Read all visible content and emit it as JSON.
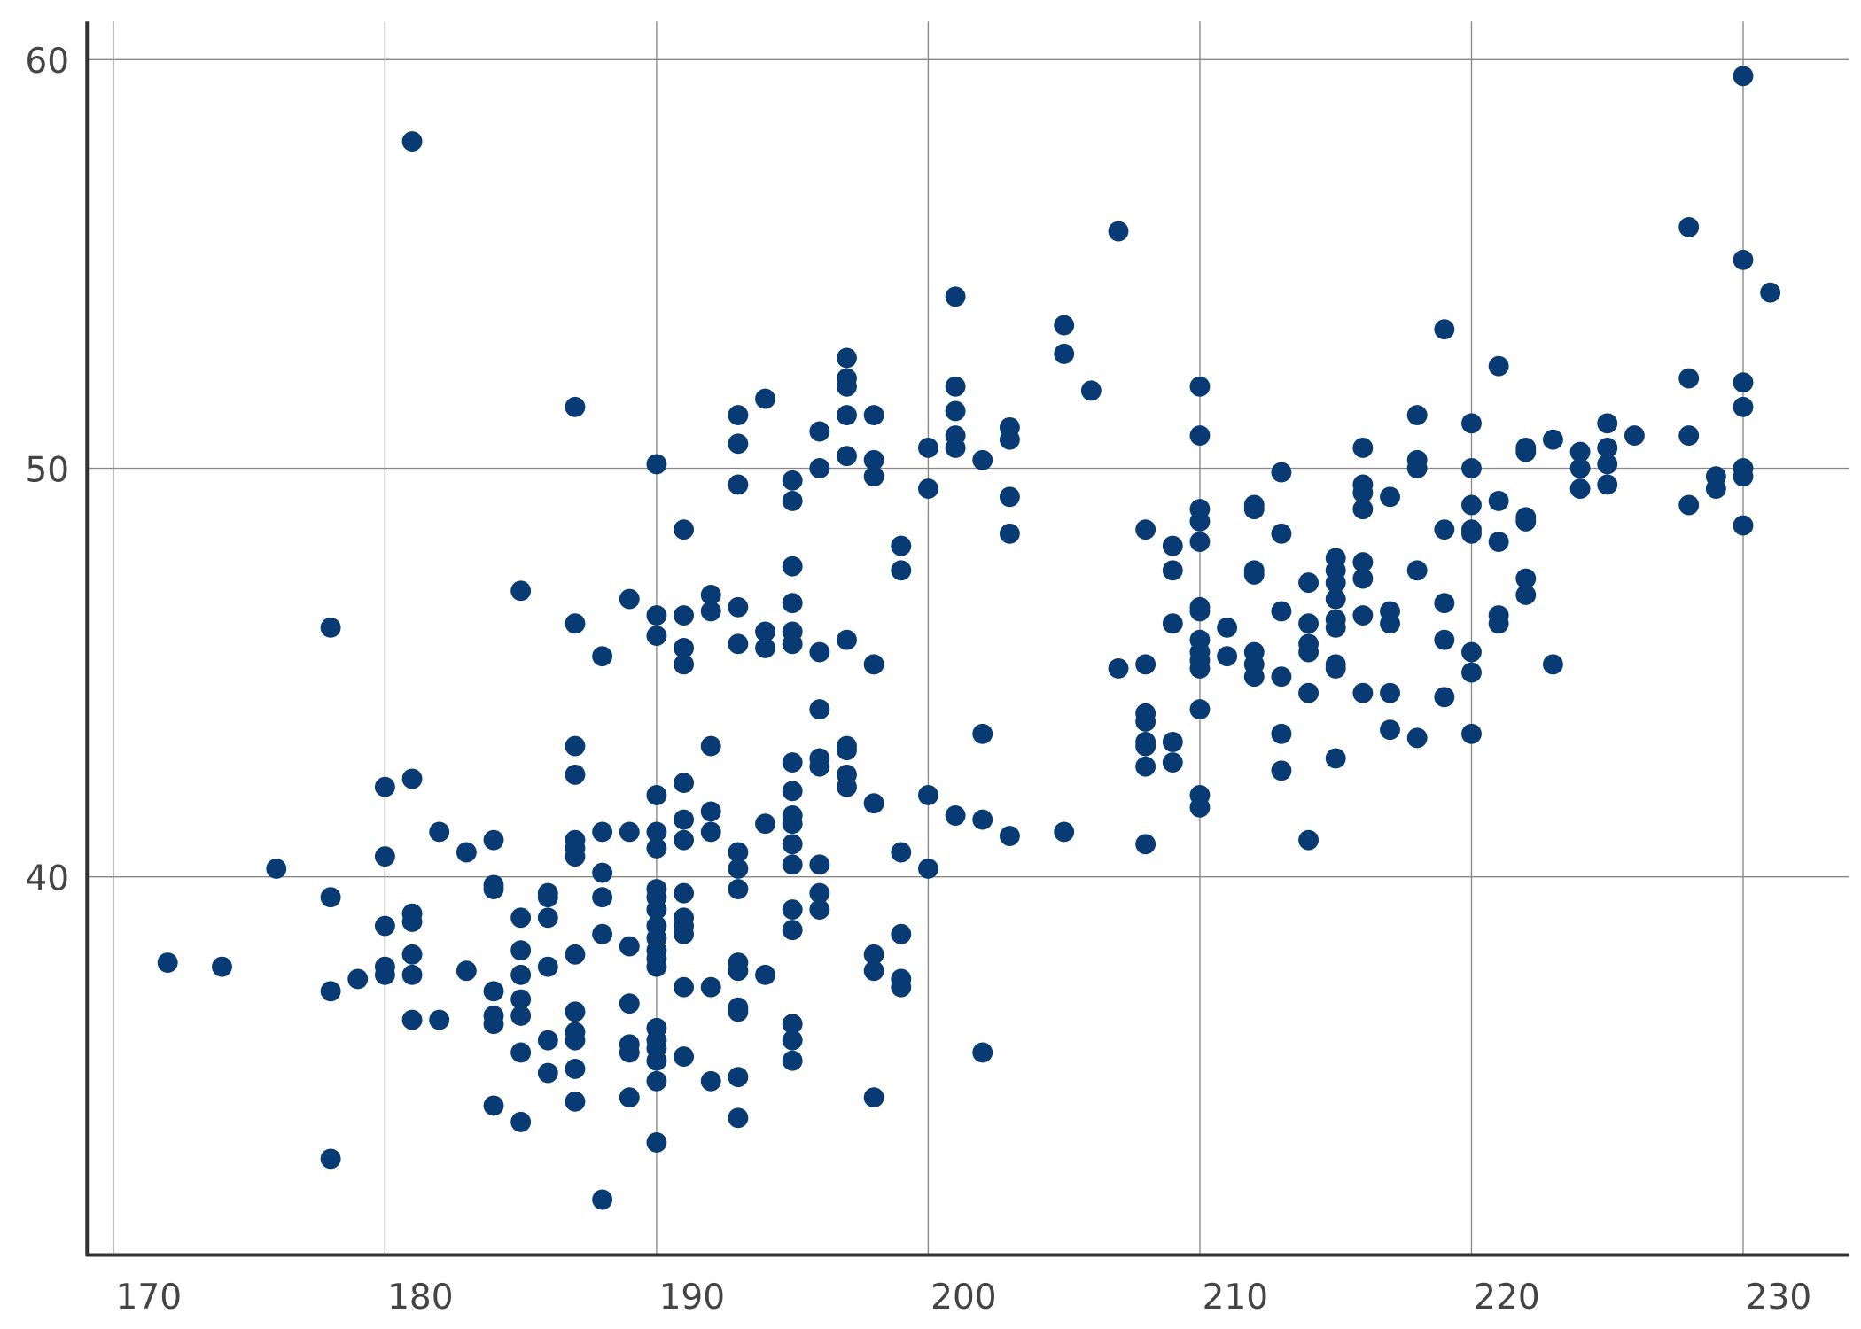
{
  "chart_data": {
    "type": "scatter",
    "title": "",
    "xlabel": "",
    "ylabel": "",
    "xlim": [
      169,
      233
    ],
    "ylim": [
      31,
      61
    ],
    "x_ticks": [
      "170",
      "180",
      "190",
      "200",
      "210",
      "220",
      "230"
    ],
    "y_ticks": [
      "40",
      "50",
      "60"
    ],
    "grid": true,
    "legend": "none",
    "point_color": "#083b74",
    "points": [
      [
        172,
        37.9
      ],
      [
        174,
        37.8
      ],
      [
        176,
        40.2
      ],
      [
        178,
        46.1
      ],
      [
        178,
        39.5
      ],
      [
        178,
        37.2
      ],
      [
        178,
        33.1
      ],
      [
        179,
        37.5
      ],
      [
        180,
        42.2
      ],
      [
        180,
        40.5
      ],
      [
        180,
        38.8
      ],
      [
        180,
        37.8
      ],
      [
        180,
        37.6
      ],
      [
        181,
        58.0
      ],
      [
        181,
        42.4
      ],
      [
        181,
        39.1
      ],
      [
        181,
        38.9
      ],
      [
        181,
        38.1
      ],
      [
        181,
        37.6
      ],
      [
        181,
        36.5
      ],
      [
        182,
        41.1
      ],
      [
        182,
        36.5
      ],
      [
        183,
        40.6
      ],
      [
        183,
        37.7
      ],
      [
        184,
        40.9
      ],
      [
        184,
        39.8
      ],
      [
        184,
        39.7
      ],
      [
        184,
        37.2
      ],
      [
        184,
        36.6
      ],
      [
        184,
        36.4
      ],
      [
        184,
        34.4
      ],
      [
        185,
        47.0
      ],
      [
        185,
        39.0
      ],
      [
        185,
        38.2
      ],
      [
        185,
        37.6
      ],
      [
        185,
        37.0
      ],
      [
        185,
        36.6
      ],
      [
        185,
        35.7
      ],
      [
        185,
        34.0
      ],
      [
        186,
        39.6
      ],
      [
        186,
        39.5
      ],
      [
        186,
        39.0
      ],
      [
        186,
        37.8
      ],
      [
        186,
        36.0
      ],
      [
        186,
        35.2
      ],
      [
        187,
        51.5
      ],
      [
        187,
        46.2
      ],
      [
        187,
        43.2
      ],
      [
        187,
        42.5
      ],
      [
        187,
        40.9
      ],
      [
        187,
        40.7
      ],
      [
        187,
        40.5
      ],
      [
        187,
        38.1
      ],
      [
        187,
        36.7
      ],
      [
        187,
        36.2
      ],
      [
        187,
        36.0
      ],
      [
        187,
        35.3
      ],
      [
        187,
        34.5
      ],
      [
        188,
        45.4
      ],
      [
        188,
        41.1
      ],
      [
        188,
        40.1
      ],
      [
        188,
        39.5
      ],
      [
        188,
        38.6
      ],
      [
        188,
        32.1
      ],
      [
        189,
        46.8
      ],
      [
        189,
        41.1
      ],
      [
        189,
        38.3
      ],
      [
        189,
        36.9
      ],
      [
        189,
        35.9
      ],
      [
        189,
        35.7
      ],
      [
        189,
        34.6
      ],
      [
        190,
        50.1
      ],
      [
        190,
        46.4
      ],
      [
        190,
        45.9
      ],
      [
        190,
        42.0
      ],
      [
        190,
        41.1
      ],
      [
        190,
        40.7
      ],
      [
        190,
        39.7
      ],
      [
        190,
        39.5
      ],
      [
        190,
        39.2
      ],
      [
        190,
        38.8
      ],
      [
        190,
        38.5
      ],
      [
        190,
        38.2
      ],
      [
        190,
        38.0
      ],
      [
        190,
        37.8
      ],
      [
        190,
        36.3
      ],
      [
        190,
        36.0
      ],
      [
        190,
        35.8
      ],
      [
        190,
        35.5
      ],
      [
        190,
        35.0
      ],
      [
        190,
        33.5
      ],
      [
        191,
        48.5
      ],
      [
        191,
        46.4
      ],
      [
        191,
        45.6
      ],
      [
        191,
        45.2
      ],
      [
        191,
        42.3
      ],
      [
        191,
        41.4
      ],
      [
        191,
        40.9
      ],
      [
        191,
        39.6
      ],
      [
        191,
        39.0
      ],
      [
        191,
        38.8
      ],
      [
        191,
        38.6
      ],
      [
        191,
        37.3
      ],
      [
        191,
        35.6
      ],
      [
        192,
        46.9
      ],
      [
        192,
        46.5
      ],
      [
        192,
        43.2
      ],
      [
        192,
        41.6
      ],
      [
        192,
        41.1
      ],
      [
        192,
        37.3
      ],
      [
        192,
        35.0
      ],
      [
        193,
        51.3
      ],
      [
        193,
        50.6
      ],
      [
        193,
        49.6
      ],
      [
        193,
        46.6
      ],
      [
        193,
        45.7
      ],
      [
        193,
        40.6
      ],
      [
        193,
        40.2
      ],
      [
        193,
        39.7
      ],
      [
        193,
        37.9
      ],
      [
        193,
        37.7
      ],
      [
        193,
        36.8
      ],
      [
        193,
        36.7
      ],
      [
        193,
        35.1
      ],
      [
        193,
        34.1
      ],
      [
        194,
        51.7
      ],
      [
        194,
        46.0
      ],
      [
        194,
        45.6
      ],
      [
        194,
        41.3
      ],
      [
        194,
        37.6
      ],
      [
        195,
        49.7
      ],
      [
        195,
        49.2
      ],
      [
        195,
        47.6
      ],
      [
        195,
        46.7
      ],
      [
        195,
        46.0
      ],
      [
        195,
        45.7
      ],
      [
        195,
        42.8
      ],
      [
        195,
        42.1
      ],
      [
        195,
        41.5
      ],
      [
        195,
        41.3
      ],
      [
        195,
        40.8
      ],
      [
        195,
        40.3
      ],
      [
        195,
        39.2
      ],
      [
        195,
        38.7
      ],
      [
        195,
        36.4
      ],
      [
        195,
        36.0
      ],
      [
        195,
        35.5
      ],
      [
        196,
        50.9
      ],
      [
        196,
        50.0
      ],
      [
        196,
        45.5
      ],
      [
        196,
        44.1
      ],
      [
        196,
        42.9
      ],
      [
        196,
        42.7
      ],
      [
        196,
        40.3
      ],
      [
        196,
        39.6
      ],
      [
        196,
        39.2
      ],
      [
        197,
        52.7
      ],
      [
        197,
        52.2
      ],
      [
        197,
        52.0
      ],
      [
        197,
        51.3
      ],
      [
        197,
        50.3
      ],
      [
        197,
        45.8
      ],
      [
        197,
        43.2
      ],
      [
        197,
        43.1
      ],
      [
        197,
        42.5
      ],
      [
        197,
        42.2
      ],
      [
        198,
        51.3
      ],
      [
        198,
        50.2
      ],
      [
        198,
        49.8
      ],
      [
        198,
        45.2
      ],
      [
        198,
        41.8
      ],
      [
        198,
        38.1
      ],
      [
        198,
        37.7
      ],
      [
        198,
        34.6
      ],
      [
        199,
        48.1
      ],
      [
        199,
        47.5
      ],
      [
        199,
        40.6
      ],
      [
        199,
        38.6
      ],
      [
        199,
        37.5
      ],
      [
        199,
        37.3
      ],
      [
        200,
        50.5
      ],
      [
        200,
        49.5
      ],
      [
        200,
        42.0
      ],
      [
        200,
        40.2
      ],
      [
        201,
        54.2
      ],
      [
        201,
        52.0
      ],
      [
        201,
        51.4
      ],
      [
        201,
        50.8
      ],
      [
        201,
        50.5
      ],
      [
        201,
        41.5
      ],
      [
        202,
        50.2
      ],
      [
        202,
        43.5
      ],
      [
        202,
        41.4
      ],
      [
        202,
        35.7
      ],
      [
        203,
        51.0
      ],
      [
        203,
        50.7
      ],
      [
        203,
        49.3
      ],
      [
        203,
        48.4
      ],
      [
        203,
        41.0
      ],
      [
        205,
        53.5
      ],
      [
        205,
        52.8
      ],
      [
        205,
        41.1
      ],
      [
        206,
        51.9
      ],
      [
        207,
        55.8
      ],
      [
        207,
        45.1
      ],
      [
        208,
        48.5
      ],
      [
        208,
        45.2
      ],
      [
        208,
        44.0
      ],
      [
        208,
        43.8
      ],
      [
        208,
        43.3
      ],
      [
        208,
        43.2
      ],
      [
        208,
        42.7
      ],
      [
        208,
        40.8
      ],
      [
        209,
        48.1
      ],
      [
        209,
        47.5
      ],
      [
        209,
        46.2
      ],
      [
        209,
        43.3
      ],
      [
        209,
        42.8
      ],
      [
        210,
        52.0
      ],
      [
        210,
        50.8
      ],
      [
        210,
        49.0
      ],
      [
        210,
        48.7
      ],
      [
        210,
        48.2
      ],
      [
        210,
        46.6
      ],
      [
        210,
        46.5
      ],
      [
        210,
        45.8
      ],
      [
        210,
        45.5
      ],
      [
        210,
        45.3
      ],
      [
        210,
        45.1
      ],
      [
        210,
        44.1
      ],
      [
        210,
        42.0
      ],
      [
        210,
        41.7
      ],
      [
        211,
        46.1
      ],
      [
        211,
        45.4
      ],
      [
        212,
        49.1
      ],
      [
        212,
        49.0
      ],
      [
        212,
        47.5
      ],
      [
        212,
        47.4
      ],
      [
        212,
        45.5
      ],
      [
        212,
        45.2
      ],
      [
        212,
        44.9
      ],
      [
        213,
        49.9
      ],
      [
        213,
        48.4
      ],
      [
        213,
        46.5
      ],
      [
        213,
        44.9
      ],
      [
        213,
        43.5
      ],
      [
        213,
        42.6
      ],
      [
        214,
        47.2
      ],
      [
        214,
        46.2
      ],
      [
        214,
        45.7
      ],
      [
        214,
        45.5
      ],
      [
        214,
        44.5
      ],
      [
        214,
        40.9
      ],
      [
        215,
        47.8
      ],
      [
        215,
        47.5
      ],
      [
        215,
        47.2
      ],
      [
        215,
        46.8
      ],
      [
        215,
        46.3
      ],
      [
        215,
        46.1
      ],
      [
        215,
        45.2
      ],
      [
        215,
        45.1
      ],
      [
        215,
        42.9
      ],
      [
        216,
        50.5
      ],
      [
        216,
        49.6
      ],
      [
        216,
        49.4
      ],
      [
        216,
        49.0
      ],
      [
        216,
        47.7
      ],
      [
        216,
        47.3
      ],
      [
        216,
        46.4
      ],
      [
        216,
        44.5
      ],
      [
        217,
        49.3
      ],
      [
        217,
        46.5
      ],
      [
        217,
        46.2
      ],
      [
        217,
        44.5
      ],
      [
        217,
        43.6
      ],
      [
        218,
        51.3
      ],
      [
        218,
        50.2
      ],
      [
        218,
        50.0
      ],
      [
        218,
        47.5
      ],
      [
        218,
        43.4
      ],
      [
        219,
        53.4
      ],
      [
        219,
        48.5
      ],
      [
        219,
        46.7
      ],
      [
        219,
        45.8
      ],
      [
        219,
        44.4
      ],
      [
        220,
        51.1
      ],
      [
        220,
        50.0
      ],
      [
        220,
        49.1
      ],
      [
        220,
        48.5
      ],
      [
        220,
        48.4
      ],
      [
        220,
        45.5
      ],
      [
        220,
        45.0
      ],
      [
        220,
        43.5
      ],
      [
        221,
        52.5
      ],
      [
        221,
        49.2
      ],
      [
        221,
        48.2
      ],
      [
        221,
        46.4
      ],
      [
        221,
        46.2
      ],
      [
        222,
        50.5
      ],
      [
        222,
        50.4
      ],
      [
        222,
        48.8
      ],
      [
        222,
        48.7
      ],
      [
        222,
        47.3
      ],
      [
        222,
        46.9
      ],
      [
        223,
        50.7
      ],
      [
        223,
        45.2
      ],
      [
        224,
        50.4
      ],
      [
        224,
        50.0
      ],
      [
        224,
        49.5
      ],
      [
        225,
        51.1
      ],
      [
        225,
        50.5
      ],
      [
        225,
        50.1
      ],
      [
        225,
        49.6
      ],
      [
        226,
        50.8
      ],
      [
        228,
        55.9
      ],
      [
        228,
        52.2
      ],
      [
        228,
        50.8
      ],
      [
        228,
        49.1
      ],
      [
        229,
        49.8
      ],
      [
        229,
        49.5
      ],
      [
        230,
        59.6
      ],
      [
        230,
        55.1
      ],
      [
        230,
        52.1
      ],
      [
        230,
        51.5
      ],
      [
        230,
        50.0
      ],
      [
        230,
        49.8
      ],
      [
        230,
        48.6
      ],
      [
        231,
        54.3
      ]
    ]
  }
}
